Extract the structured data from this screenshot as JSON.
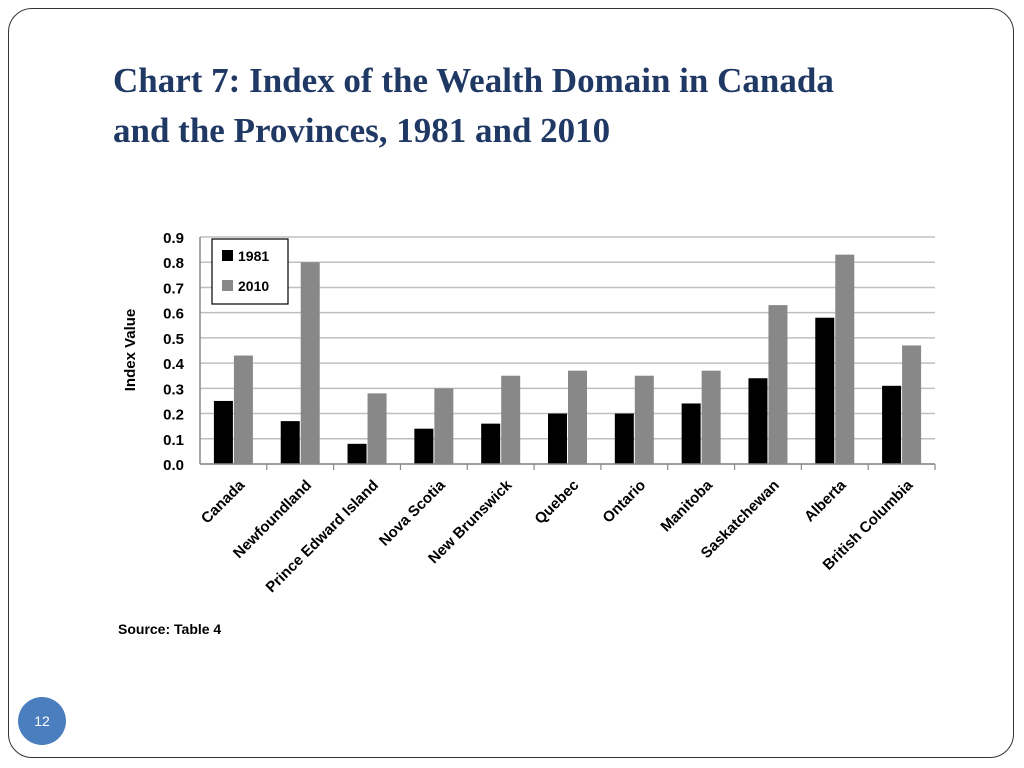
{
  "slide": {
    "title_line1": "Chart 7: Index of the Wealth Domain in Canada",
    "title_line2": "and the Provinces, 1981 and 2010",
    "source": "Source: Table 4",
    "page_number": "12"
  },
  "colors": {
    "title": "#1f3864",
    "series_1981": "#000000",
    "series_2010": "#888888",
    "gridline": "#bfbfbf",
    "badge": "#4a7ebf"
  },
  "chart_data": {
    "type": "bar",
    "title": "",
    "xlabel": "",
    "ylabel": "Index Value",
    "ylim": [
      0,
      0.9
    ],
    "yticks": [
      "0.0",
      "0.1",
      "0.2",
      "0.3",
      "0.4",
      "0.5",
      "0.6",
      "0.7",
      "0.8",
      "0.9"
    ],
    "grid": true,
    "legend_position": "top-left",
    "categories": [
      "Canada",
      "Newfoundland",
      "Prince Edward Island",
      "Nova Scotia",
      "New Brunswick",
      "Quebec",
      "Ontario",
      "Manitoba",
      "Saskatchewan",
      "Alberta",
      "British Columbia"
    ],
    "series": [
      {
        "name": "1981",
        "values": [
          0.25,
          0.17,
          0.08,
          0.14,
          0.16,
          0.2,
          0.2,
          0.24,
          0.34,
          0.58,
          0.31
        ]
      },
      {
        "name": "2010",
        "values": [
          0.43,
          0.8,
          0.28,
          0.3,
          0.35,
          0.37,
          0.35,
          0.37,
          0.63,
          0.83,
          0.47
        ]
      }
    ]
  }
}
